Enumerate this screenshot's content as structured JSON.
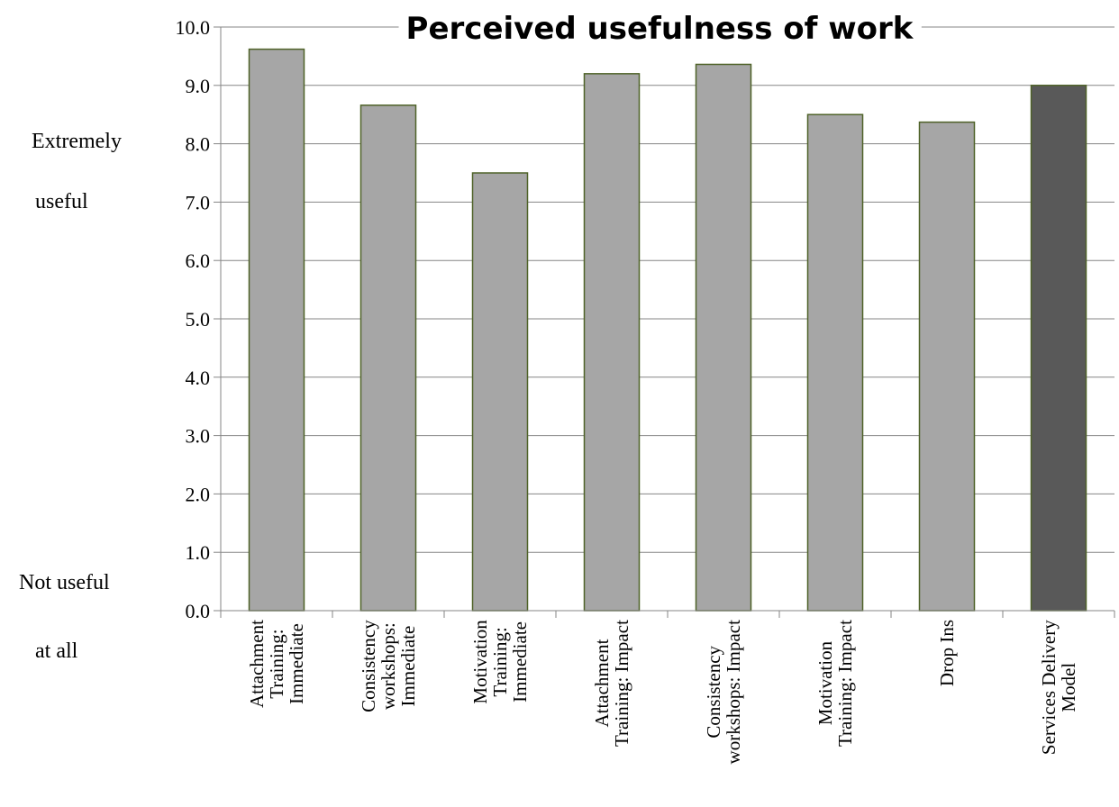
{
  "chart_data": {
    "type": "bar",
    "title": "Perceived usefulness of work",
    "categories": [
      [
        "Attachment",
        "Training:",
        "Immediate"
      ],
      [
        "Consistency",
        "workshops:",
        "Immediate"
      ],
      [
        "Motivation",
        "Training:",
        "Immediate"
      ],
      [
        "Attachment",
        "Training: Impact"
      ],
      [
        "Consistency",
        "workshops: Impact"
      ],
      [
        "Motivation",
        "Training: Impact"
      ],
      [
        "Drop Ins"
      ],
      [
        "Services Delivery",
        "Model"
      ]
    ],
    "values": [
      9.62,
      8.66,
      7.5,
      9.2,
      9.36,
      8.5,
      8.37,
      9.0
    ],
    "ylim": [
      0,
      10
    ],
    "yticks": [
      "0.0",
      "1.0",
      "2.0",
      "3.0",
      "4.0",
      "5.0",
      "6.0",
      "7.0",
      "8.0",
      "9.0",
      "10.0"
    ],
    "grid": true,
    "colors": {
      "bar": "#a6a6a6",
      "bar_highlight": "#595959",
      "bar_edge": "#4f6228",
      "grid": "#868686",
      "axis": "#868686"
    },
    "highlight_index": 7
  },
  "scale_labels": {
    "top_line1": "Extremely",
    "top_line2": "useful",
    "bottom_line1": "Not useful",
    "bottom_line2": "at all"
  }
}
